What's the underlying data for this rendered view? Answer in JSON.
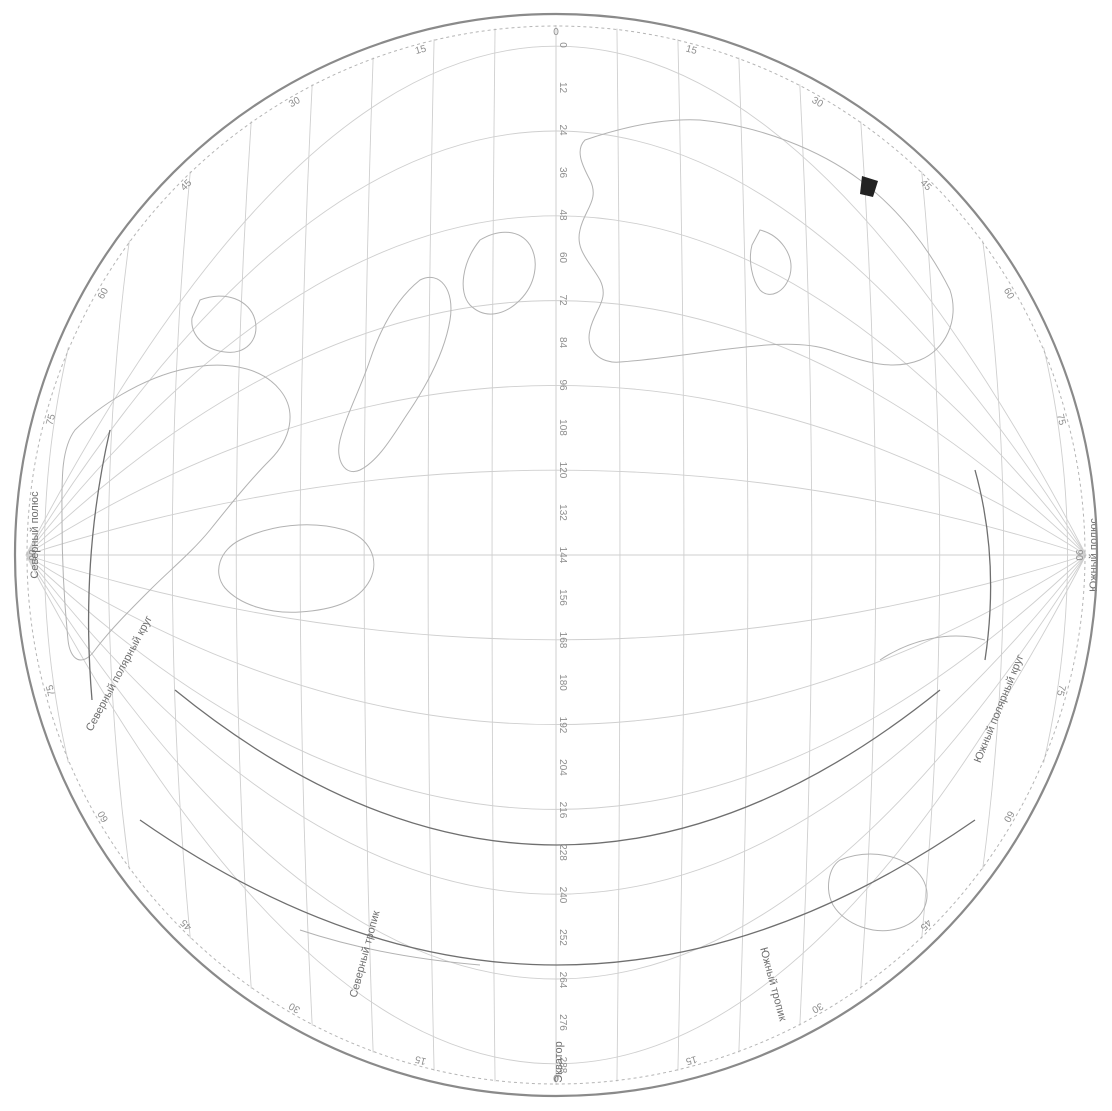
{
  "map": {
    "line_labels": {
      "north_pole": "Северный полюс",
      "south_pole": "Южный полюс",
      "arctic_circle": "Северный полярный круг",
      "antarctic_circle": "Южный полярный круг",
      "tropic_north": "Северный тропик",
      "tropic_south": "Южный тропик",
      "equator": "Экватор"
    },
    "meridian_labels": [
      "0",
      "12",
      "24",
      "36",
      "48",
      "60",
      "72",
      "84",
      "96",
      "108",
      "120",
      "132",
      "144",
      "156",
      "168",
      "180",
      "192",
      "204",
      "216",
      "228",
      "240",
      "252",
      "264",
      "276",
      "288"
    ],
    "rim_labels": [
      "0",
      "15",
      "30",
      "45",
      "60",
      "75",
      "90",
      "75",
      "60",
      "45",
      "30",
      "15",
      "0",
      "15",
      "30",
      "45",
      "60",
      "75",
      "90",
      "75",
      "60",
      "45",
      "30",
      "15"
    ],
    "colors": {
      "rim": "#8a8a8a",
      "graticule": "#cfcfcf",
      "special_lines": "#6f6f6f",
      "coast": "#b2b2b2"
    }
  }
}
